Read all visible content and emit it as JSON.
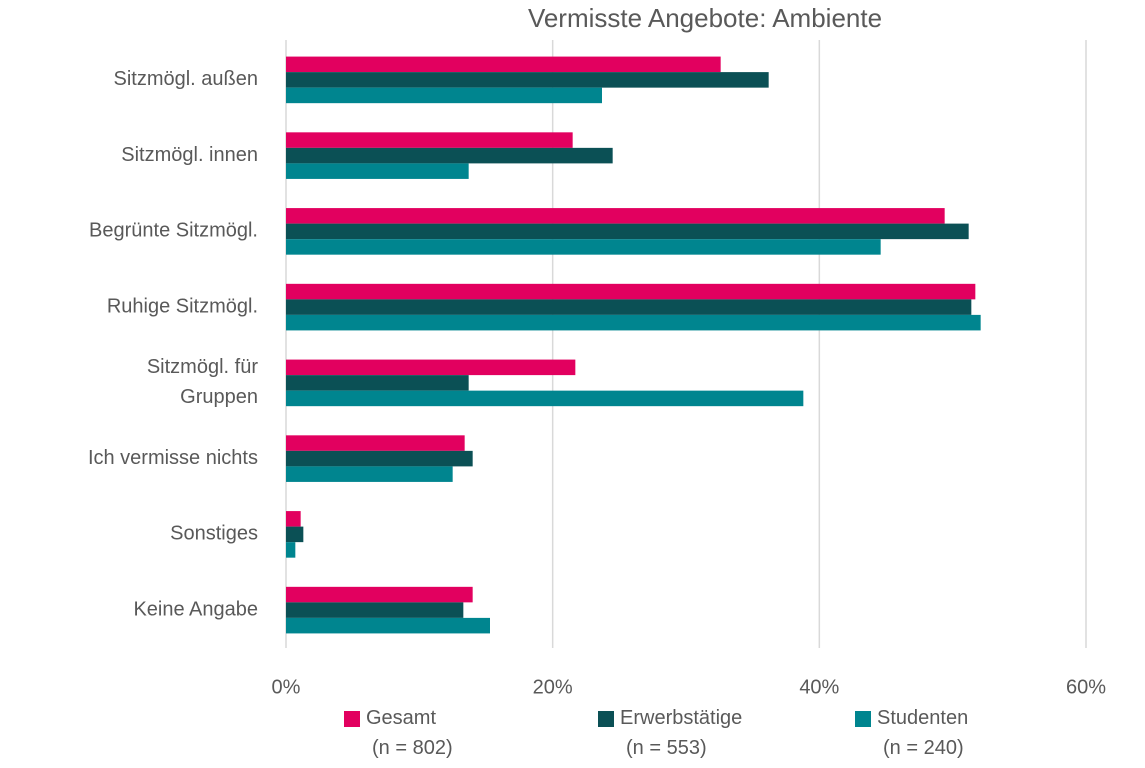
{
  "chart_data": {
    "type": "bar",
    "orientation": "horizontal",
    "title": "Vermisste Angebote: Ambiente",
    "categories": [
      "Sitzmögl. außen",
      "Sitzmögl. innen",
      "Begrünte Sitzmögl.",
      "Ruhige Sitzmögl.",
      "Sitzmögl. für\nGruppen",
      "Ich vermisse nichts",
      "Sonstiges",
      "Keine Angabe"
    ],
    "series": [
      {
        "name": "Gesamt\n(n = 802)",
        "color": "#e2005f",
        "values": [
          32.6,
          21.5,
          49.4,
          51.7,
          21.7,
          13.4,
          1.1,
          14.0
        ]
      },
      {
        "name": "Erwerbstätige\n(n = 553)",
        "color": "#0b5055",
        "values": [
          36.2,
          24.5,
          51.2,
          51.4,
          13.7,
          14.0,
          1.3,
          13.3
        ]
      },
      {
        "name": "Studenten\n(n = 240)",
        "color": "#00858f",
        "values": [
          23.7,
          13.7,
          44.6,
          52.1,
          38.8,
          12.5,
          0.7,
          15.3
        ]
      }
    ],
    "xlim": [
      0,
      60
    ],
    "xticks": [
      {
        "value": 0,
        "label": "0%"
      },
      {
        "value": 20,
        "label": "20%"
      },
      {
        "value": 40,
        "label": "40%"
      },
      {
        "value": 60,
        "label": "60%"
      }
    ],
    "grid": true,
    "legend": "bottom"
  }
}
